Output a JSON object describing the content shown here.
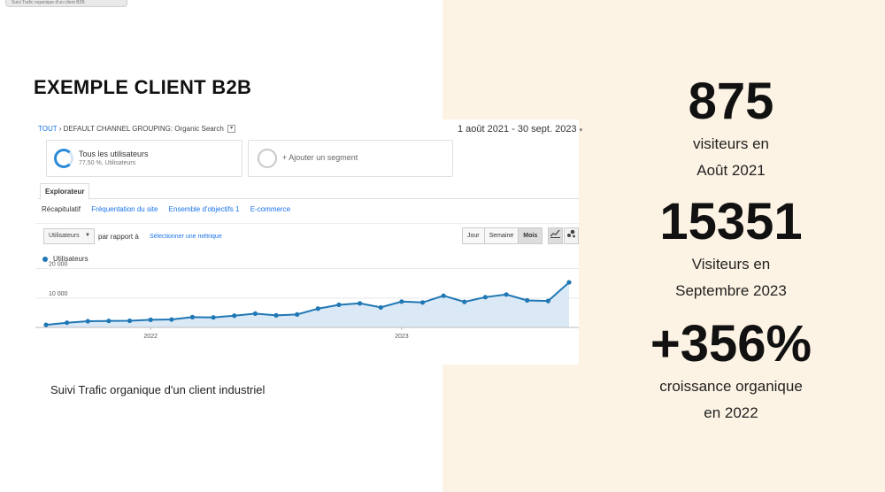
{
  "tooltip": "Suivi Trafic organique d'un client B2B",
  "title": "EXEMPLE CLIENT B2B",
  "ga": {
    "breadcrumb_link": "TOUT",
    "breadcrumb_sep": "›",
    "breadcrumb_text": "DEFAULT CHANNEL GROUPING: Organic Search",
    "date_range": "1 août 2021 - 30 sept. 2023",
    "segment1": {
      "title": "Tous les utilisateurs",
      "sub": "77,50 %, Utilisateurs"
    },
    "segment2": {
      "label": "+ Ajouter un segment"
    },
    "tab": "Explorateur",
    "subnav": [
      "Récapitulatif",
      "Fréquentation du site",
      "Ensemble d'objectifs 1",
      "E-commerce"
    ],
    "metric_select": "Utilisateurs",
    "compare_label": "par rapport à",
    "compare_link": "Sélectionner une métrique",
    "periods": [
      "Jour",
      "Semaine",
      "Mois"
    ],
    "legend": "Utilisateurs"
  },
  "chart_data": {
    "type": "line",
    "series": [
      {
        "name": "Utilisateurs",
        "values": [
          875,
          1600,
          2100,
          2200,
          2250,
          2600,
          2700,
          3500,
          3400,
          4000,
          4700,
          4100,
          4400,
          6400,
          7700,
          8200,
          6800,
          8800,
          8500,
          10800,
          8700,
          10300,
          11200,
          9200,
          9000,
          15351
        ]
      }
    ],
    "y_ticks": [
      "20 000",
      "10 000"
    ],
    "y_tick_values": [
      20000,
      10000
    ],
    "ylim": [
      0,
      22000
    ],
    "x_ticks": [
      "2022",
      "2023"
    ],
    "x_tick_indices": [
      5,
      17
    ],
    "color": "#1f77b4",
    "fill": "#dbe9f6"
  },
  "caption": "Suivi Trafic organique d'un client industriel",
  "stats": [
    {
      "value": "875",
      "line1": "visiteurs en",
      "line2": "Août 2021"
    },
    {
      "value": "15351",
      "line1": "Visiteurs en",
      "line2": "Septembre 2023"
    },
    {
      "value": "+356%",
      "line1": "croissance organique",
      "line2": "en 2022"
    }
  ]
}
